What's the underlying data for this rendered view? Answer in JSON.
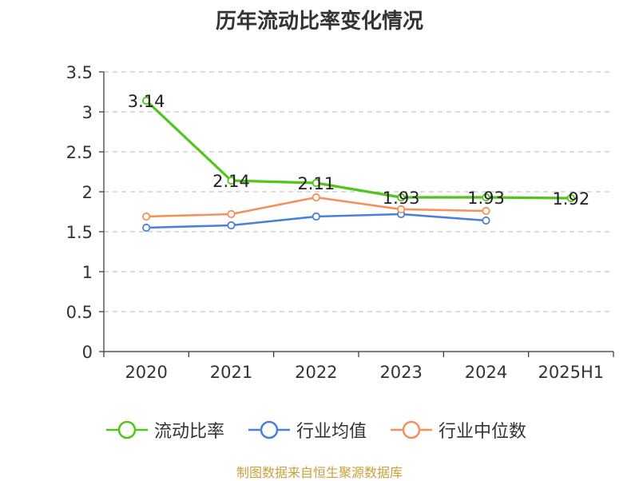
{
  "title": "历年流动比率变化情况",
  "source": "制图数据来自恒生聚源数据库",
  "colors": {
    "series_1": "#52c41a",
    "series_2": "#4a7fdc",
    "series_3": "#f6905a",
    "grid": "#c8c8c8",
    "axis": "#333333"
  },
  "chart_data": {
    "type": "line",
    "categories": [
      "2020",
      "2021",
      "2022",
      "2023",
      "2024",
      "2025H1"
    ],
    "ylim": [
      0,
      3.5
    ],
    "yticks": [
      "0",
      "0.5",
      "1",
      "1.5",
      "2",
      "2.5",
      "3",
      "3.5"
    ],
    "grid": "horizontal dashed",
    "legend_position": "bottom",
    "series": [
      {
        "name": "流动比率",
        "values": [
          3.14,
          2.14,
          2.11,
          1.93,
          1.93,
          1.92
        ],
        "labels": [
          "3.14",
          "2.14",
          "2.11",
          "1.93",
          "1.93",
          "1.92"
        ]
      },
      {
        "name": "行业均值",
        "values": [
          1.55,
          1.58,
          1.69,
          1.72,
          1.64,
          null
        ]
      },
      {
        "name": "行业中位数",
        "values": [
          1.69,
          1.72,
          1.93,
          1.78,
          1.76,
          null
        ]
      }
    ]
  }
}
